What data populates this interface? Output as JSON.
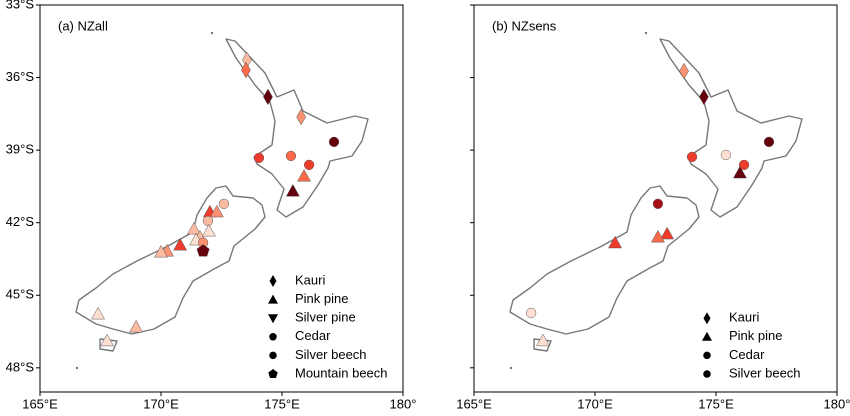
{
  "chart_data": [
    {
      "type": "map",
      "title": "(a) NZall",
      "xlim": [
        165,
        180
      ],
      "ylim": [
        -49,
        -33
      ],
      "xticks": [
        {
          "value": 165,
          "label": "165°E"
        },
        {
          "value": 170,
          "label": "170°E"
        },
        {
          "value": 175,
          "label": "175°E"
        },
        {
          "value": 180,
          "label": "180°"
        }
      ],
      "yticks": [
        {
          "value": -33,
          "label": "33°S"
        },
        {
          "value": -36,
          "label": "36°S"
        },
        {
          "value": -39,
          "label": "39°S"
        },
        {
          "value": -42,
          "label": "42°S"
        },
        {
          "value": -45,
          "label": "45°S"
        },
        {
          "value": -48,
          "label": "48°S"
        }
      ],
      "legend_loc": "lower right",
      "legend": [
        {
          "label": "Kauri",
          "marker": "diamond"
        },
        {
          "label": "Pink pine",
          "marker": "triangle-up"
        },
        {
          "label": "Silver pine",
          "marker": "triangle-down"
        },
        {
          "label": "Cedar",
          "marker": "circle"
        },
        {
          "label": "Silver beech",
          "marker": "circle"
        },
        {
          "label": "Mountain beech",
          "marker": "pentagon"
        }
      ],
      "points": [
        {
          "marker": "diamond",
          "lon": 173.55,
          "lat": -35.27,
          "color": "#fcbba1"
        },
        {
          "marker": "diamond",
          "lon": 173.51,
          "lat": -35.69,
          "color": "#fb6a4a"
        },
        {
          "marker": "diamond",
          "lon": 174.42,
          "lat": -36.8,
          "color": "#67000d"
        },
        {
          "marker": "diamond",
          "lon": 175.79,
          "lat": -37.63,
          "color": "#fc9272"
        },
        {
          "marker": "circle",
          "lon": 177.15,
          "lat": -38.66,
          "color": "#67000d"
        },
        {
          "marker": "circle",
          "lon": 174.05,
          "lat": -39.32,
          "color": "#ef3b2c"
        },
        {
          "marker": "circle",
          "lon": 175.37,
          "lat": -39.24,
          "color": "#fb6a4a"
        },
        {
          "marker": "circle",
          "lon": 176.12,
          "lat": -39.61,
          "color": "#ef3b2c"
        },
        {
          "marker": "triangle-up",
          "lon": 175.91,
          "lat": -40.07,
          "color": "#fb6a4a"
        },
        {
          "marker": "triangle-up",
          "lon": 175.45,
          "lat": -40.69,
          "color": "#67000d"
        },
        {
          "marker": "circle",
          "lon": 172.6,
          "lat": -41.22,
          "color": "#fcbba1"
        },
        {
          "marker": "triangle-up",
          "lon": 172.02,
          "lat": -41.55,
          "color": "#ef3b2c"
        },
        {
          "marker": "triangle-up",
          "lon": 172.31,
          "lat": -41.55,
          "color": "#fc9272"
        },
        {
          "marker": "circle",
          "lon": 171.94,
          "lat": -41.93,
          "color": "#fcbba1"
        },
        {
          "marker": "triangle-up",
          "lon": 171.36,
          "lat": -42.26,
          "color": "#fcbba1"
        },
        {
          "marker": "triangle-up",
          "lon": 171.61,
          "lat": -42.59,
          "color": "#fcbba1"
        },
        {
          "marker": "triangle-up",
          "lon": 171.45,
          "lat": -42.71,
          "color": "#fee0d2"
        },
        {
          "marker": "circle",
          "lon": 171.74,
          "lat": -42.83,
          "color": "#fc9272"
        },
        {
          "marker": "triangle-up",
          "lon": 171.98,
          "lat": -42.34,
          "color": "#fee0d2"
        },
        {
          "marker": "pentagon",
          "lon": 171.74,
          "lat": -43.17,
          "color": "#67000d"
        },
        {
          "marker": "triangle-up",
          "lon": 170.79,
          "lat": -42.92,
          "color": "#ef3b2c"
        },
        {
          "marker": "triangle-up",
          "lon": 170.25,
          "lat": -43.17,
          "color": "#fc9272"
        },
        {
          "marker": "triangle-up",
          "lon": 170.0,
          "lat": -43.21,
          "color": "#fcbba1"
        },
        {
          "marker": "triangle-up",
          "lon": 167.4,
          "lat": -45.77,
          "color": "#fee0d2"
        },
        {
          "marker": "triangle-up",
          "lon": 168.97,
          "lat": -46.31,
          "color": "#fcbba1"
        },
        {
          "marker": "triangle-up",
          "lon": 167.77,
          "lat": -46.88,
          "color": "#fee0d2"
        }
      ]
    },
    {
      "type": "map",
      "title": "(b) NZsens",
      "xlim": [
        165,
        180
      ],
      "ylim": [
        -49,
        -33
      ],
      "xticks": [
        {
          "value": 165,
          "label": "165°E"
        },
        {
          "value": 170,
          "label": "170°E"
        },
        {
          "value": 175,
          "label": "175°E"
        },
        {
          "value": 180,
          "label": "180°"
        }
      ],
      "yticks": [
        -33,
        -36,
        -39,
        -42,
        -45,
        -48
      ],
      "legend_loc": "lower right",
      "legend": [
        {
          "label": "Kauri",
          "marker": "diamond"
        },
        {
          "label": "Pink pine",
          "marker": "triangle-up"
        },
        {
          "label": "Cedar",
          "marker": "circle"
        },
        {
          "label": "Silver beech",
          "marker": "circle"
        }
      ],
      "points": [
        {
          "marker": "diamond",
          "lon": 173.68,
          "lat": -35.73,
          "color": "#fc9272"
        },
        {
          "marker": "diamond",
          "lon": 174.5,
          "lat": -36.8,
          "color": "#67000d"
        },
        {
          "marker": "circle",
          "lon": 177.19,
          "lat": -38.66,
          "color": "#67000d"
        },
        {
          "marker": "circle",
          "lon": 174.01,
          "lat": -39.28,
          "color": "#ef3b2c"
        },
        {
          "marker": "circle",
          "lon": 175.41,
          "lat": -39.2,
          "color": "#fee0d2"
        },
        {
          "marker": "circle",
          "lon": 176.16,
          "lat": -39.61,
          "color": "#ef3b2c"
        },
        {
          "marker": "triangle-up",
          "lon": 175.99,
          "lat": -39.94,
          "color": "#67000d"
        },
        {
          "marker": "circle",
          "lon": 172.6,
          "lat": -41.22,
          "color": "#a50f15"
        },
        {
          "marker": "triangle-up",
          "lon": 172.98,
          "lat": -42.46,
          "color": "#ef3b2c"
        },
        {
          "marker": "triangle-up",
          "lon": 172.6,
          "lat": -42.59,
          "color": "#fb6a4a"
        },
        {
          "marker": "triangle-up",
          "lon": 170.83,
          "lat": -42.83,
          "color": "#ef3b2c"
        },
        {
          "marker": "circle",
          "lon": 167.36,
          "lat": -45.73,
          "color": "#fee0d2"
        },
        {
          "marker": "triangle-up",
          "lon": 167.85,
          "lat": -46.88,
          "color": "#fee0d2"
        }
      ]
    }
  ]
}
